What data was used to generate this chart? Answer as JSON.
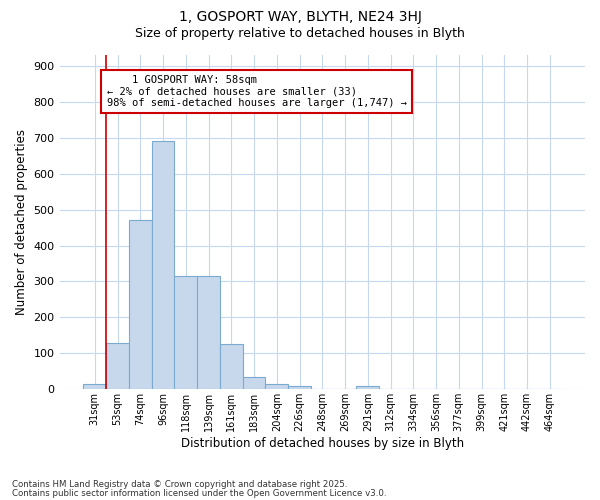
{
  "title1": "1, GOSPORT WAY, BLYTH, NE24 3HJ",
  "title2": "Size of property relative to detached houses in Blyth",
  "xlabel": "Distribution of detached houses by size in Blyth",
  "ylabel": "Number of detached properties",
  "bin_labels": [
    "31sqm",
    "53sqm",
    "74sqm",
    "96sqm",
    "118sqm",
    "139sqm",
    "161sqm",
    "183sqm",
    "204sqm",
    "226sqm",
    "248sqm",
    "269sqm",
    "291sqm",
    "312sqm",
    "334sqm",
    "356sqm",
    "377sqm",
    "399sqm",
    "421sqm",
    "442sqm",
    "464sqm"
  ],
  "bar_heights": [
    15,
    128,
    470,
    690,
    315,
    315,
    125,
    35,
    15,
    8,
    0,
    0,
    8,
    0,
    0,
    0,
    0,
    0,
    0,
    0,
    0
  ],
  "bar_color": "#c8d8ec",
  "bar_edge_color": "#7aaace",
  "annotation_text": "    1 GOSPORT WAY: 58sqm\n← 2% of detached houses are smaller (33)\n98% of semi-detached houses are larger (1,747) →",
  "annotation_box_color": "#ffffff",
  "annotation_box_edge_color": "#cc0000",
  "vline_color": "#cc0000",
  "vline_x": 0.5,
  "ylim": [
    0,
    930
  ],
  "yticks": [
    0,
    100,
    200,
    300,
    400,
    500,
    600,
    700,
    800,
    900
  ],
  "background_color": "#ffffff",
  "grid_color": "#c5d8f0",
  "footnote1": "Contains HM Land Registry data © Crown copyright and database right 2025.",
  "footnote2": "Contains public sector information licensed under the Open Government Licence v3.0."
}
